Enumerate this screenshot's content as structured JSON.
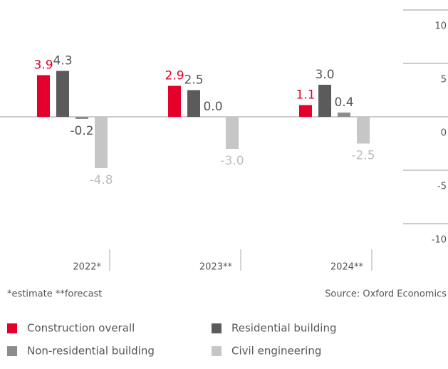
{
  "chart_data": {
    "type": "bar",
    "categories": [
      "2022*",
      "2023**",
      "2024**"
    ],
    "series": [
      {
        "name": "Construction overall",
        "color": "#e4002b",
        "label_color": "#e4002b",
        "values": [
          3.9,
          2.9,
          1.1
        ],
        "value_labels": [
          "3.9",
          "2.9",
          "1.1"
        ]
      },
      {
        "name": "Residential building",
        "color": "#5b5b5b",
        "label_color": "#555555",
        "values": [
          4.3,
          2.5,
          3.0
        ],
        "value_labels": [
          "4.3",
          "2.5",
          "3.0"
        ]
      },
      {
        "name": "Non-residential building",
        "color": "#8c8c8c",
        "label_color": "#555555",
        "values": [
          -0.2,
          0.0,
          0.4
        ],
        "value_labels": [
          "-0.2",
          "0.0",
          "0.4"
        ]
      },
      {
        "name": "Civil engineering",
        "color": "#c6c6c6",
        "label_color": "#bdbdbd",
        "values": [
          -4.8,
          -3.0,
          -2.5
        ],
        "value_labels": [
          "-4.8",
          "-3.0",
          "-2.5"
        ]
      }
    ],
    "ylim": [
      -10,
      10
    ],
    "yticks": [
      10,
      5,
      0,
      -5,
      -10
    ],
    "footnote": "*estimate **forecast",
    "source": "Source: Oxford Economics"
  }
}
